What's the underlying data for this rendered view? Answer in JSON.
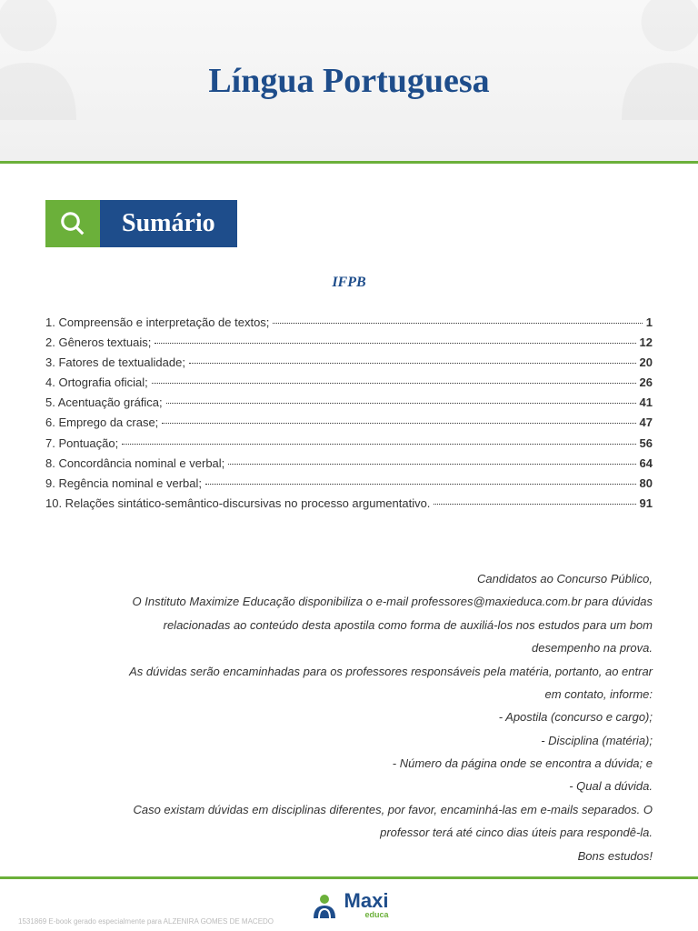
{
  "header": {
    "title": "Língua Portuguesa"
  },
  "sumario": {
    "label": "Sumário",
    "icon_name": "magnifier-icon",
    "icon_bg": "#6bb03a",
    "label_bg": "#1e4d8b",
    "label_color": "#ffffff"
  },
  "subtitle": "IFPB",
  "toc": {
    "text_color": "#333333",
    "font_size": 13,
    "items": [
      {
        "num": "1.",
        "label": "Compreensão e interpretação de textos;",
        "page": "1"
      },
      {
        "num": "2.",
        "label": "Gêneros textuais;",
        "page": "12"
      },
      {
        "num": "3.",
        "label": "Fatores de textualidade;",
        "page": "20"
      },
      {
        "num": "4.",
        "label": "Ortografia oficial;",
        "page": "26"
      },
      {
        "num": "5.",
        "label": "Acentuação gráfica;",
        "page": "41"
      },
      {
        "num": "6.",
        "label": "Emprego da crase;",
        "page": "47"
      },
      {
        "num": "7.",
        "label": "Pontuação;",
        "page": "56"
      },
      {
        "num": "8.",
        "label": "Concordância nominal e verbal;",
        "page": "64"
      },
      {
        "num": "9.",
        "label": "Regência nominal e verbal;",
        "page": "80"
      },
      {
        "num": "10.",
        "label": "Relações sintático-semântico-discursivas no processo argumentativo.",
        "page": "91"
      }
    ]
  },
  "info": {
    "lines": [
      "Candidatos ao Concurso Público,",
      "O Instituto Maximize Educação disponibiliza o e-mail professores@maxieduca.com.br para dúvidas",
      "relacionadas ao conteúdo desta apostila como forma de auxiliá-los nos estudos para um bom",
      "desempenho na prova.",
      "As dúvidas serão encaminhadas para os professores responsáveis pela matéria, portanto, ao entrar",
      "em contato, informe:",
      "- Apostila (concurso e cargo);",
      "- Disciplina (matéria);",
      "- Número da página onde se encontra a dúvida; e",
      "- Qual a dúvida.",
      "Caso existam dúvidas em disciplinas diferentes, por favor, encaminhá-las em e-mails separados. O",
      "professor terá até cinco dias úteis para respondê-la.",
      "Bons estudos!"
    ]
  },
  "footer": {
    "brand": "Maxi",
    "sub": "educa",
    "note": "1531869 E-book gerado especialmente para ALZENIRA GOMES DE MACEDO",
    "accent_color": "#6bb03a",
    "brand_color": "#1e4d8b"
  },
  "colors": {
    "primary_blue": "#1e4d8b",
    "primary_green": "#6bb03a",
    "text": "#333333",
    "bg": "#ffffff",
    "header_bg_top": "#f8f8f8",
    "header_bg_bottom": "#f0f0f0"
  }
}
